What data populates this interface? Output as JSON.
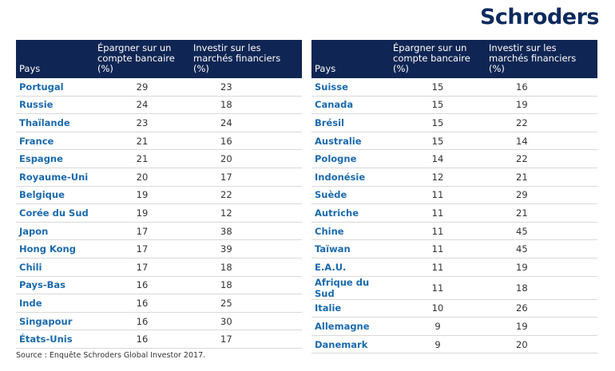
{
  "logo": "Schroders",
  "tables": [
    {
      "header": [
        "Pays",
        "Épargner sur un compte bancaire (%)",
        "Investir sur les marchés financiers (%)"
      ],
      "rows": [
        [
          "Portugal",
          29,
          23
        ],
        [
          "Russie",
          24,
          18
        ],
        [
          "Thaïlande",
          23,
          24
        ],
        [
          "France",
          21,
          16
        ],
        [
          "Espagne",
          21,
          20
        ],
        [
          "Royaume-Uni",
          20,
          17
        ],
        [
          "Belgique",
          19,
          22
        ],
        [
          "Corée du Sud",
          19,
          12
        ],
        [
          "Japon",
          17,
          38
        ],
        [
          "Hong Kong",
          17,
          39
        ],
        [
          "Chili",
          17,
          18
        ],
        [
          "Pays-Bas",
          16,
          18
        ],
        [
          "Inde",
          16,
          25
        ],
        [
          "Singapour",
          16,
          30
        ],
        [
          "États-Unis",
          16,
          17
        ]
      ]
    },
    {
      "header": [
        "Pays",
        "Épargner sur un compte bancaire (%)",
        "Investir sur les marchés financiers (%)"
      ],
      "rows": [
        [
          "Suisse",
          15,
          16
        ],
        [
          "Canada",
          15,
          19
        ],
        [
          "Brésil",
          15,
          22
        ],
        [
          "Australie",
          15,
          14
        ],
        [
          "Pologne",
          14,
          22
        ],
        [
          "Indonésie",
          12,
          21
        ],
        [
          "Suède",
          11,
          29
        ],
        [
          "Autriche",
          11,
          21
        ],
        [
          "Chine",
          11,
          45
        ],
        [
          "Taïwan",
          11,
          45
        ],
        [
          "E.A.U.",
          11,
          19
        ],
        [
          "Afrique du Sud",
          11,
          18
        ],
        [
          "Italie",
          10,
          26
        ],
        [
          "Allemagne",
          9,
          19
        ],
        [
          "Danemark",
          9,
          20
        ]
      ]
    }
  ],
  "source": "Source : Enquête Schroders Global Investor 2017."
}
